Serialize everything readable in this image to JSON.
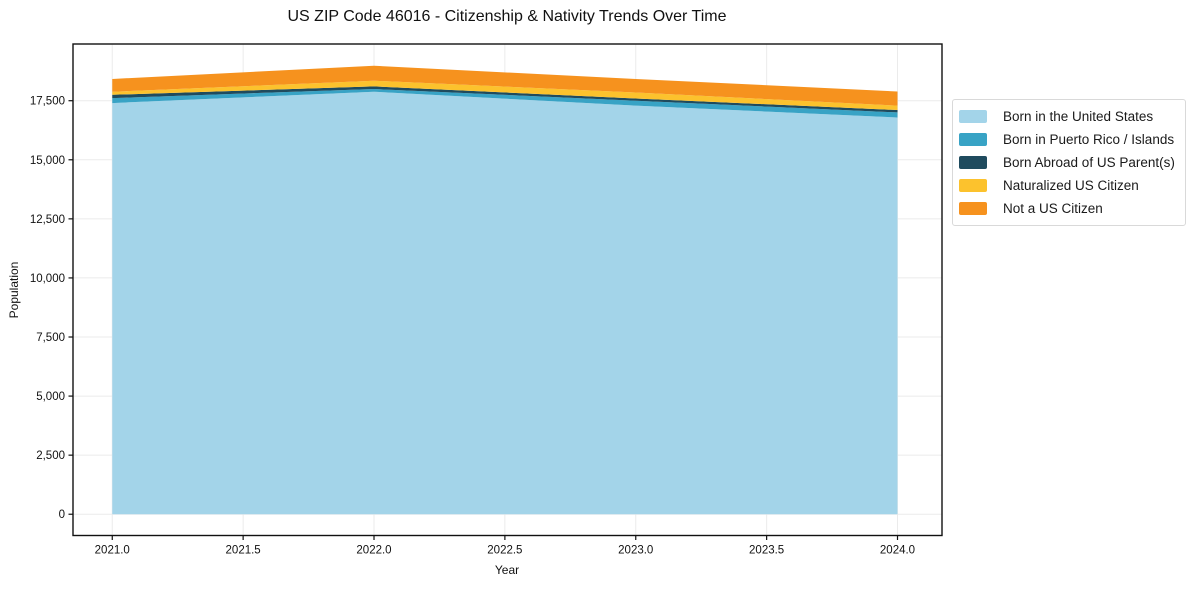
{
  "title": "US ZIP Code 46016 - Citizenship & Nativity Trends Over Time",
  "chart_data": {
    "type": "area",
    "stacked": true,
    "title": "US ZIP Code 46016 - Citizenship & Nativity Trends Over Time",
    "xlabel": "Year",
    "ylabel": "Population",
    "x": [
      2021,
      2022,
      2023,
      2024
    ],
    "series": [
      {
        "name": "Born in the United States",
        "color": "#A3D4E9",
        "values": [
          17400,
          17880,
          17290,
          16790
        ]
      },
      {
        "name": "Born in Puerto Rico / Islands",
        "color": "#38A3C5",
        "values": [
          210,
          115,
          210,
          215
        ]
      },
      {
        "name": "Born Abroad of US Parent(s)",
        "color": "#1F4B5E",
        "values": [
          140,
          110,
          95,
          100
        ]
      },
      {
        "name": "Naturalized US Citizen",
        "color": "#FCC22D",
        "values": [
          130,
          240,
          255,
          185
        ]
      },
      {
        "name": "Not a US Citizen",
        "color": "#F6921E",
        "values": [
          540,
          635,
          570,
          600
        ]
      }
    ],
    "xlim": [
      2020.85,
      2024.17
    ],
    "ylim": [
      -900,
      19900
    ],
    "xtick_values": [
      2021.0,
      2021.5,
      2022.0,
      2022.5,
      2023.0,
      2023.5,
      2024.0
    ],
    "xtick_labels": [
      "2021.0",
      "2021.5",
      "2022.0",
      "2022.5",
      "2023.0",
      "2023.5",
      "2024.0"
    ],
    "ytick_values": [
      0,
      2500,
      5000,
      7500,
      10000,
      12500,
      15000,
      17500
    ],
    "ytick_labels": [
      "0",
      "2,500",
      "5,000",
      "7,500",
      "10,000",
      "12,500",
      "15,000",
      "17,500"
    ],
    "grid": true,
    "grid_color": "#ebebeb",
    "spine_color": "#111111",
    "legend_position": "right"
  }
}
